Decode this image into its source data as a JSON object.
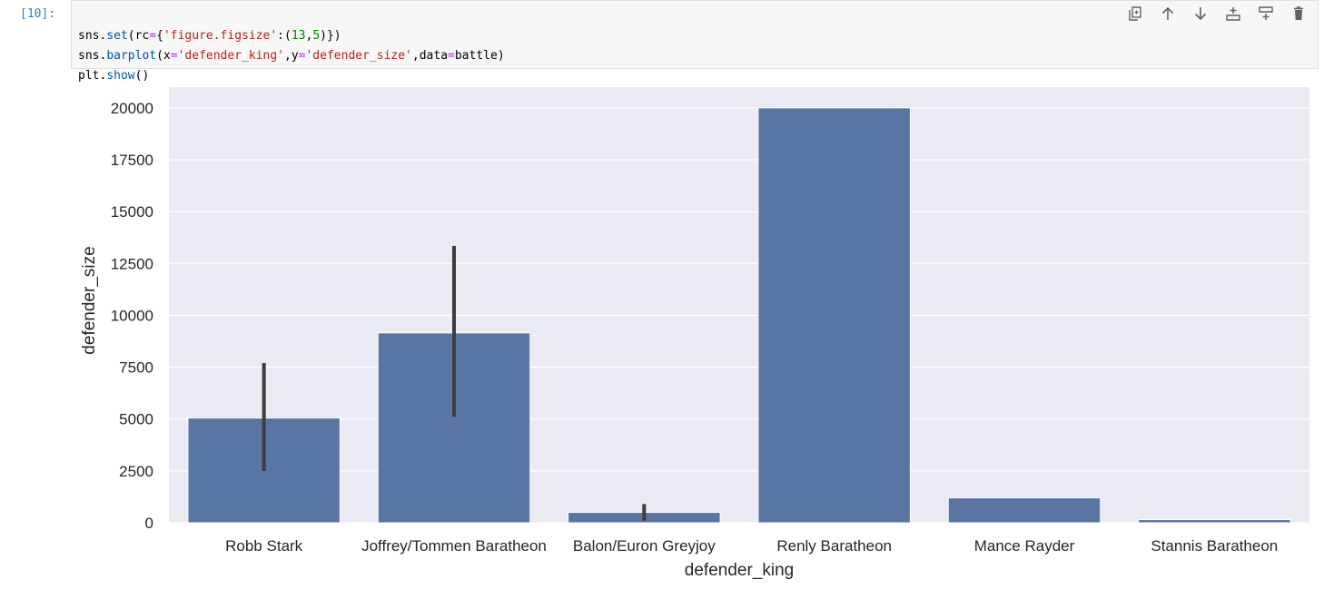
{
  "cell": {
    "prompt": "[10]:",
    "code": {
      "line1": [
        "sns",
        ".",
        "set",
        "(rc",
        "=",
        "{",
        "'figure.figsize'",
        ":(",
        "13",
        ",",
        "5",
        ")",
        "}",
        ")"
      ],
      "line2": [
        "sns",
        ".",
        "barplot",
        "(x",
        "=",
        "'defender_king'",
        ",y",
        "=",
        "'defender_size'",
        ",data",
        "=",
        "battle",
        ")"
      ],
      "line3": [
        "plt",
        ".",
        "show",
        "()"
      ]
    },
    "toolbar": {
      "duplicate": "copy-icon",
      "move_up": "arrow-up-icon",
      "move_down": "arrow-down-icon",
      "insert_above": "insert-above-icon",
      "insert_below": "insert-below-icon",
      "delete": "trash-icon"
    }
  },
  "chart_data": {
    "type": "bar",
    "title": "",
    "xlabel": "defender_king",
    "ylabel": "defender_size",
    "categories": [
      "Robb Stark",
      "Joffrey/Tommen Baratheon",
      "Balon/Euron Greyjoy",
      "Renly Baratheon",
      "Mance Rayder",
      "Stannis Baratheon"
    ],
    "values": [
      5050,
      9150,
      500,
      20000,
      1200,
      150
    ],
    "error_bars": [
      [
        2500,
        7700
      ],
      [
        5100,
        13350
      ],
      [
        100,
        900
      ],
      null,
      null,
      null
    ],
    "ylim": [
      0,
      21000
    ],
    "yticks": [
      0,
      2500,
      5000,
      7500,
      10000,
      12500,
      15000,
      17500,
      20000
    ],
    "ytick_labels": [
      "0",
      "2500",
      "5000",
      "7500",
      "10000",
      "12500",
      "15000",
      "17500",
      "20000"
    ],
    "grid": true,
    "bar_color": "#5975a4",
    "background_color": "#eaeaf2",
    "error_color": "#3d3d3d"
  }
}
